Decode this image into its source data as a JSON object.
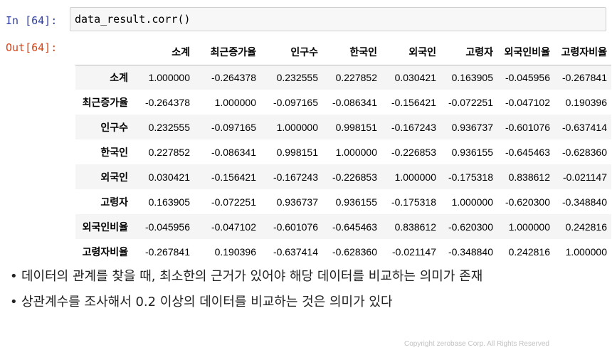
{
  "cell": {
    "in_prompt": "In [64]:",
    "out_prompt": "Out[64]:",
    "code": "data_result.corr()"
  },
  "table": {
    "columns": [
      "소계",
      "최근증가율",
      "인구수",
      "한국인",
      "외국인",
      "고령자",
      "외국인비율",
      "고령자비율"
    ],
    "rows": [
      {
        "index": "소계",
        "values": [
          "1.000000",
          "-0.264378",
          "0.232555",
          "0.227852",
          "0.030421",
          "0.163905",
          "-0.045956",
          "-0.267841"
        ]
      },
      {
        "index": "최근증가율",
        "values": [
          "-0.264378",
          "1.000000",
          "-0.097165",
          "-0.086341",
          "-0.156421",
          "-0.072251",
          "-0.047102",
          "0.190396"
        ]
      },
      {
        "index": "인구수",
        "values": [
          "0.232555",
          "-0.097165",
          "1.000000",
          "0.998151",
          "-0.167243",
          "0.936737",
          "-0.601076",
          "-0.637414"
        ]
      },
      {
        "index": "한국인",
        "values": [
          "0.227852",
          "-0.086341",
          "0.998151",
          "1.000000",
          "-0.226853",
          "0.936155",
          "-0.645463",
          "-0.628360"
        ]
      },
      {
        "index": "외국인",
        "values": [
          "0.030421",
          "-0.156421",
          "-0.167243",
          "-0.226853",
          "1.000000",
          "-0.175318",
          "0.838612",
          "-0.021147"
        ]
      },
      {
        "index": "고령자",
        "values": [
          "0.163905",
          "-0.072251",
          "0.936737",
          "0.936155",
          "-0.175318",
          "1.000000",
          "-0.620300",
          "-0.348840"
        ]
      },
      {
        "index": "외국인비율",
        "values": [
          "-0.045956",
          "-0.047102",
          "-0.601076",
          "-0.645463",
          "0.838612",
          "-0.620300",
          "1.000000",
          "0.242816"
        ]
      },
      {
        "index": "고령자비율",
        "values": [
          "-0.267841",
          "0.190396",
          "-0.637414",
          "-0.628360",
          "-0.021147",
          "-0.348840",
          "0.242816",
          "1.000000"
        ]
      }
    ]
  },
  "notes": {
    "bullet": "•",
    "items": [
      "데이터의 관계를 찾을 때, 최소한의 근거가 있어야 해당 데이터를 비교하는 의미가 존재",
      "상관계수를 조사해서 0.2 이상의 데이터를 비교하는 것은 의미가 있다"
    ]
  },
  "footer": {
    "copyright": "Copyright zerobase Corp. All Rights Reserved"
  }
}
